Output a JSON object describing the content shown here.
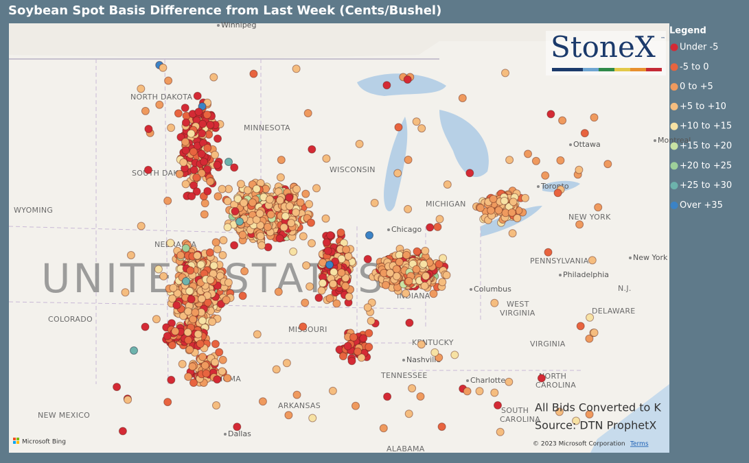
{
  "title": "Soybean Spot Basis Difference from Last Week (Cents/Bushel)",
  "logo": {
    "text": "StoneX",
    "mark": "™"
  },
  "legend": {
    "title": "Legend",
    "items": [
      {
        "label": "Under -5",
        "color": "#d42a35"
      },
      {
        "label": "-5 to 0",
        "color": "#e8643f"
      },
      {
        "label": "0 to +5",
        "color": "#ef9a5e"
      },
      {
        "label": "+5 to +10",
        "color": "#f5bd7f"
      },
      {
        "label": "+10 to +15",
        "color": "#f7e2a4"
      },
      {
        "label": "+15 to +20",
        "color": "#c8e3a4"
      },
      {
        "label": "+20 to +25",
        "color": "#9ed09a"
      },
      {
        "label": "+25 to +30",
        "color": "#6db3ac"
      },
      {
        "label": "Over +35",
        "color": "#3b83c6"
      }
    ]
  },
  "map_labels": {
    "country": "UNITED STATES",
    "states": [
      "NORTH DAKOTA",
      "MINNESOTA",
      "SOUTH DAKOTA",
      "WYOMING",
      "NEBRASKA",
      "COLORADO",
      "MISSOURI",
      "OKLAHOMA",
      "NEW MEXICO",
      "ARKANSAS",
      "KENTUCKY",
      "TENNESSEE",
      "WEST",
      "VIRGINIA",
      "VIRGINIA",
      "NORTH",
      "CAROLINA",
      "SOUTH",
      "CAROLINA",
      "PENNSYLVANIA",
      "NEW YORK",
      "DELAWARE",
      "MICHIGAN",
      "ALABAMA",
      "INDIANA",
      "WISCONSIN",
      "N.J."
    ],
    "cities": [
      "Winnipeg",
      "Chicago",
      "Columbus",
      "Nashville",
      "Ottawa",
      "Montreal",
      "Toronto",
      "Philadelphia",
      "New York",
      "Dallas",
      "Charlotte"
    ]
  },
  "notes": [
    "All Bids Converted to K",
    "Source: DTN ProphetX"
  ],
  "attribution": {
    "bing": "Microsoft Bing",
    "copyright": "© 2023 Microsoft Corporation",
    "terms": "Terms"
  }
}
